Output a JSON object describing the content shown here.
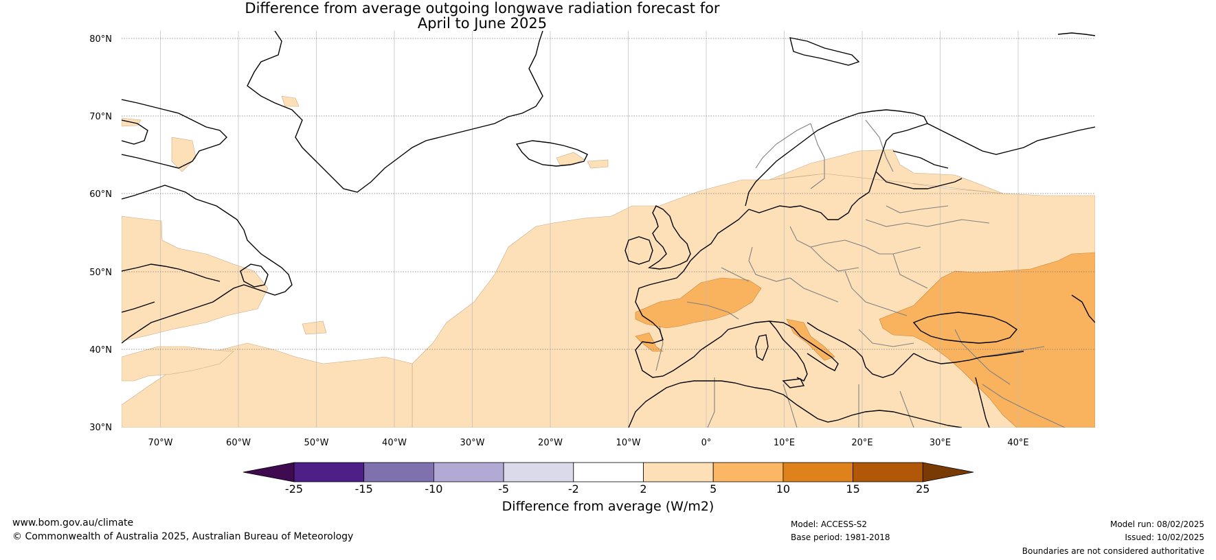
{
  "title_line1": "Difference from average outgoing longwave radiation forecast for",
  "title_line2": "April to June 2025",
  "lat_labels": [
    "80°N",
    "70°N",
    "60°N",
    "50°N",
    "40°N",
    "30°N"
  ],
  "lon_labels": [
    "70°W",
    "60°W",
    "50°W",
    "40°W",
    "30°W",
    "20°W",
    "10°W",
    "0°",
    "10°E",
    "20°E",
    "30°E",
    "40°E"
  ],
  "colorbar": {
    "title": "Difference from average (W/m2)",
    "ticks": [
      "-25",
      "-15",
      "-10",
      "-5",
      "-2",
      "2",
      "5",
      "10",
      "15",
      "25"
    ],
    "colors": {
      "below_min": "#3f0a4f",
      "bins": [
        "#4e1f86",
        "#7e71ad",
        "#b2a9d4",
        "#dadaea",
        "#ffffff",
        "#fde0b8",
        "#fbb763",
        "#e0821b",
        "#b05808"
      ],
      "above_max": "#7a3a06"
    }
  },
  "colors": {
    "ocean": "#ffffff",
    "anomaly_light": "#fde0b8",
    "anomaly_medium": "#f9b35e",
    "coastline": "#000000",
    "border": "#808080",
    "grid": "#777777"
  },
  "footer": {
    "website": "www.bom.gov.au/climate",
    "copyright": "© Commonwealth of Australia 2025, Australian Bureau of Meteorology",
    "model": "Model: ACCESS-S2",
    "base_period": "Base period: 1981-2018",
    "model_run": "Model run: 08/02/2025",
    "issued": "Issued: 10/02/2025",
    "disclaimer": "Boundaries are not considered authoritative"
  }
}
